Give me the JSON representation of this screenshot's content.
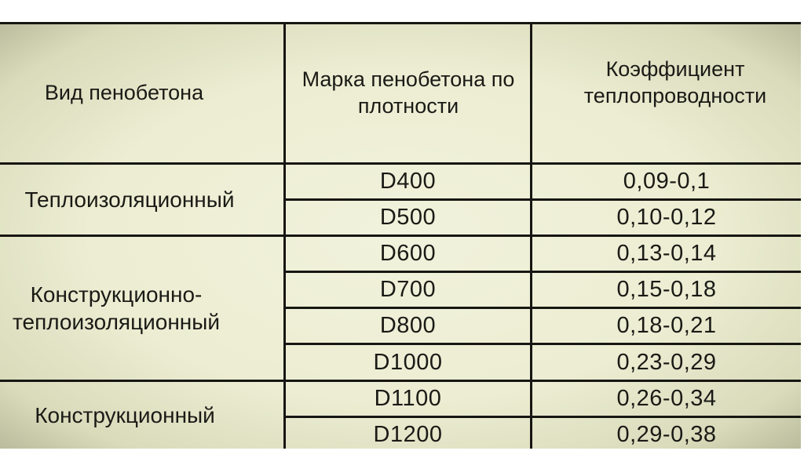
{
  "table": {
    "headers": [
      "Вид пенобетона",
      "Марка пенобетона по плотности",
      "Коэффициент теплопроводности"
    ],
    "groups": [
      {
        "type": "Теплоизоляционный"
      },
      {
        "type": "Конструкционно-теплоизоляционный"
      },
      {
        "type": "Конструкционный"
      }
    ],
    "rows": [
      {
        "grade": "D400",
        "coef": "0,09-0,1"
      },
      {
        "grade": "D500",
        "coef": "0,10-0,12"
      },
      {
        "grade": "D600",
        "coef": "0,13-0,14"
      },
      {
        "grade": "D700",
        "coef": "0,15-0,18"
      },
      {
        "grade": "D800",
        "coef": "0,18-0,21"
      },
      {
        "grade": "D1000",
        "coef": "0,23-0,29"
      },
      {
        "grade": "D1100",
        "coef": "0,26-0,34"
      },
      {
        "grade": "D1200",
        "coef": "0,29-0,38"
      }
    ]
  }
}
